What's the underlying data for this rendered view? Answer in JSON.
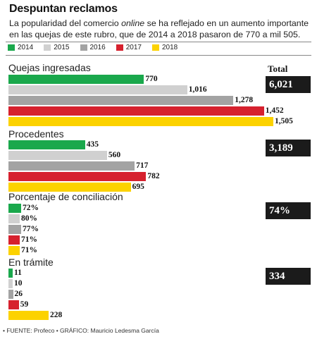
{
  "title": "Despuntan reclamos",
  "subtitle_pre": "La popularidad del comercio ",
  "subtitle_em": "online",
  "subtitle_post": " se ha reflejado en un aumento importante en las quejas de este rubro, que de 2014 a 2018 pasaron de 770 a mil 505.",
  "total_label": "Total",
  "footer": "• FUENTE: Profeco • GRÁFICO: Mauricio Ledesma García",
  "chart_data": {
    "type": "bar",
    "orientation": "horizontal",
    "title": "Despuntan reclamos",
    "legend": [
      "2014",
      "2015",
      "2016",
      "2017",
      "2018"
    ],
    "colors": [
      "#1aa84c",
      "#d0d0d0",
      "#a3a3a3",
      "#d6212e",
      "#fcd200"
    ],
    "panels": [
      {
        "name": "Quejas ingresadas",
        "values": [
          770,
          1016,
          1278,
          1452,
          1505
        ],
        "labels": [
          "770",
          "1,016",
          "1,278",
          "1,452",
          "1,505"
        ],
        "total": "6,021",
        "max": 1505
      },
      {
        "name": "Procedentes",
        "values": [
          435,
          560,
          717,
          782,
          695
        ],
        "labels": [
          "435",
          "560",
          "717",
          "782",
          "695"
        ],
        "total": "3,189",
        "max": 1505
      },
      {
        "name": "Porcentaje de conciliación",
        "values": [
          72,
          80,
          77,
          71,
          71
        ],
        "labels": [
          "72%",
          "80%",
          "77%",
          "71%",
          "71%"
        ],
        "total": "74%",
        "max": 1505
      },
      {
        "name": "En trámite",
        "values": [
          11,
          10,
          26,
          59,
          228
        ],
        "labels": [
          "11",
          "10",
          "26",
          "59",
          "228"
        ],
        "total": "334",
        "max": 1505
      }
    ]
  }
}
